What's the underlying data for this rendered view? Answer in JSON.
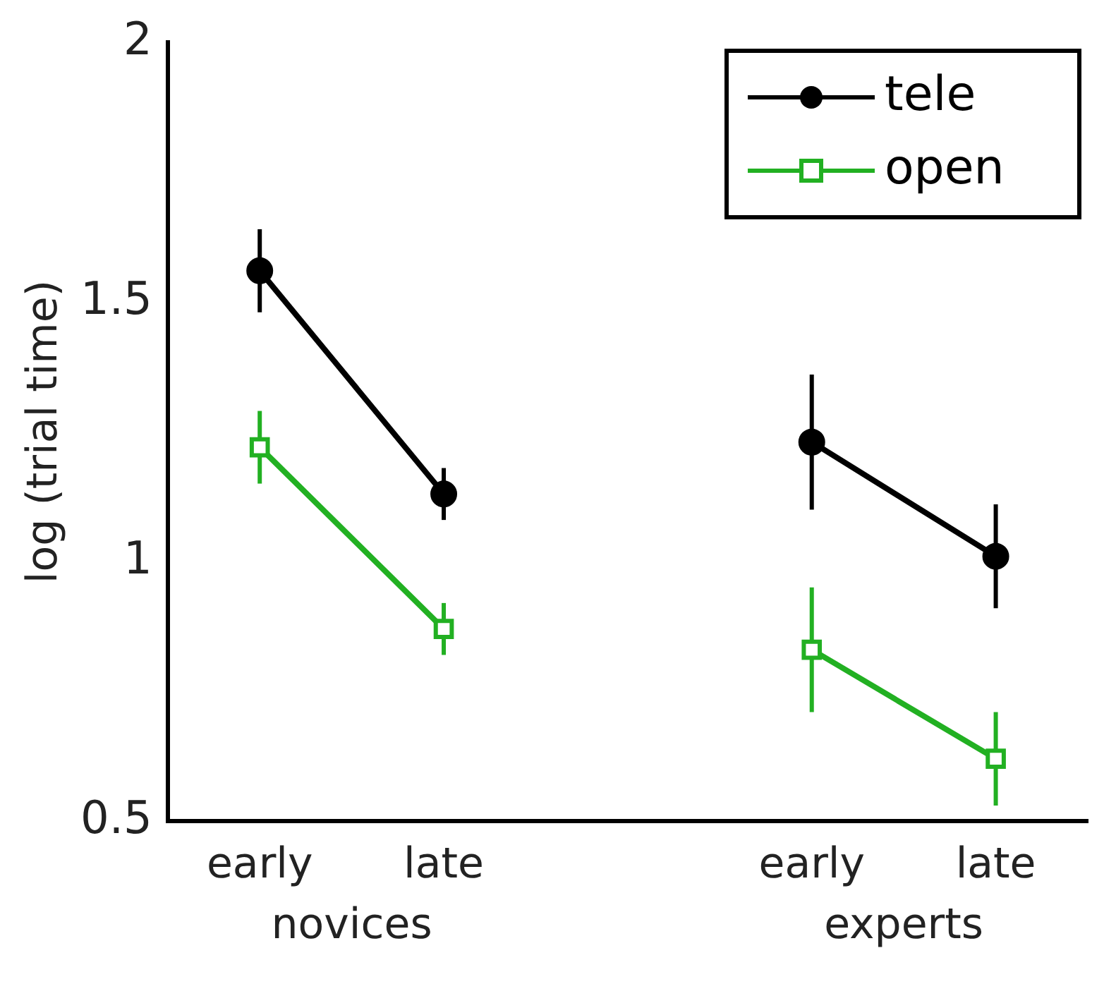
{
  "chart_data": {
    "type": "line",
    "ylabel": "log (trial time)",
    "categories": [
      "early",
      "late",
      null,
      "early",
      "late"
    ],
    "series": [
      {
        "name": "tele",
        "color": "#000000",
        "marker": "circle",
        "values": [
          1.56,
          1.13,
          null,
          1.23,
          1.01
        ],
        "errors": [
          0.08,
          0.05,
          null,
          0.13,
          0.1
        ]
      },
      {
        "name": "open",
        "color": "#22b022",
        "marker": "square",
        "values": [
          1.22,
          0.87,
          null,
          0.83,
          0.62
        ],
        "errors": [
          0.07,
          0.05,
          null,
          0.12,
          0.09
        ]
      }
    ],
    "annotations": [
      "novices",
      "experts"
    ],
    "ylim": [
      0.5,
      2
    ],
    "yticks": [
      0.5,
      1,
      1.5,
      2
    ],
    "grid": false,
    "legend": "top right"
  }
}
